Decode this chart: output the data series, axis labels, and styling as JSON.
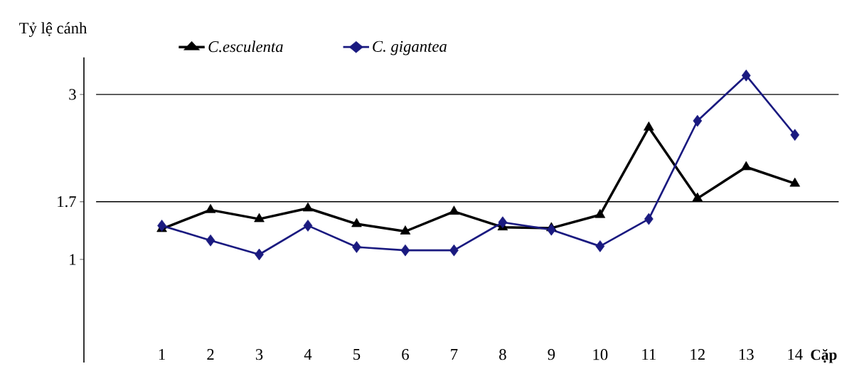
{
  "chart_data": {
    "type": "line",
    "ylabel": "Tỷ lệ cánh",
    "xlabel": "Cặp",
    "categories": [
      "1",
      "2",
      "3",
      "4",
      "5",
      "6",
      "7",
      "8",
      "9",
      "10",
      "11",
      "12",
      "13",
      "14"
    ],
    "series": [
      {
        "name": "C. gigantea",
        "color": "#1a1a80",
        "marker": "diamond",
        "values": [
          1.41,
          1.23,
          1.06,
          1.41,
          1.15,
          1.11,
          1.11,
          1.45,
          1.36,
          1.16,
          1.49,
          2.68,
          3.23,
          2.51
        ]
      },
      {
        "name": "C.esculenta",
        "color": "#000000",
        "marker": "triangle",
        "values": [
          1.37,
          1.6,
          1.49,
          1.62,
          1.43,
          1.34,
          1.58,
          1.39,
          1.38,
          1.54,
          2.6,
          1.74,
          2.12,
          1.92
        ]
      }
    ],
    "ylim": [
      -0.25,
      3.45
    ],
    "yticks": [
      1,
      1.7,
      3
    ],
    "ref_lines": [
      {
        "axis": "y",
        "value": 1.7,
        "color": "#000000"
      },
      {
        "axis": "y",
        "value": 3,
        "color": "#000000"
      }
    ],
    "legend": "top",
    "grid": false
  }
}
